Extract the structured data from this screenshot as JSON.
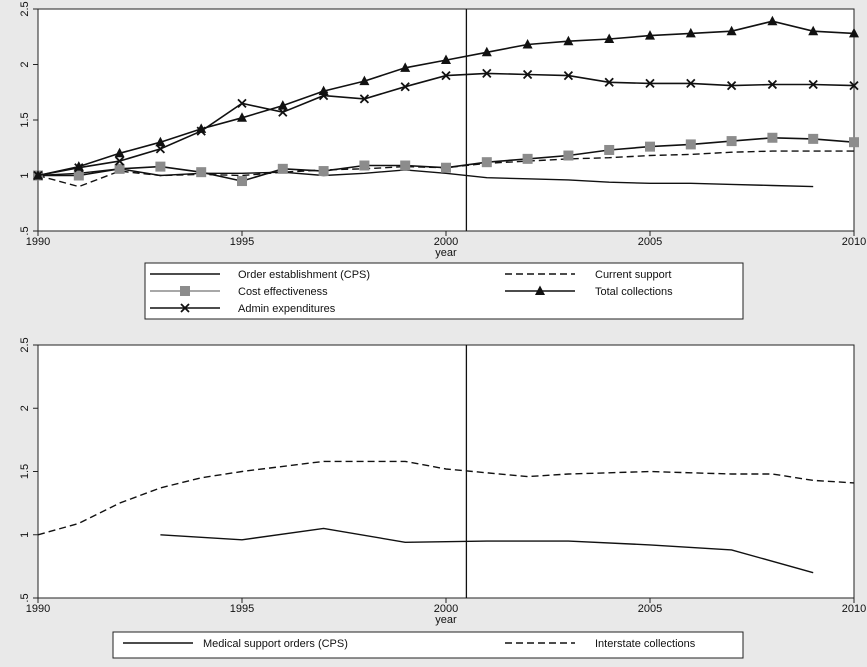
{
  "chart_data": [
    {
      "type": "line",
      "xlabel": "year",
      "ylabel": "",
      "xlim": [
        1990,
        2010
      ],
      "ylim": [
        0.5,
        2.5
      ],
      "xticks": [
        "1990",
        "1995",
        "2000",
        "2005",
        "2010"
      ],
      "yticks": [
        ".5",
        "1",
        "1.5",
        "2",
        "2.5"
      ],
      "reference_line_x": 2000.5,
      "legend_position": "bottom",
      "series": [
        {
          "name": "Order establishment (CPS)",
          "style": "solid",
          "marker": "none",
          "x": [
            1990,
            1991,
            1992,
            1993,
            1994,
            1995,
            1996,
            1997,
            1998,
            1999,
            2000,
            2001,
            2002,
            2003,
            2004,
            2005,
            2006,
            2007,
            2008,
            2009
          ],
          "values": [
            1.0,
            1.02,
            1.06,
            1.0,
            1.02,
            1.02,
            1.03,
            1.0,
            1.02,
            1.05,
            1.02,
            0.98,
            0.97,
            0.96,
            0.94,
            0.93,
            0.93,
            0.92,
            0.91,
            0.9
          ]
        },
        {
          "name": "Current support",
          "style": "dashed",
          "marker": "none",
          "x": [
            1990,
            1991,
            1992,
            1993,
            1994,
            1995,
            1996,
            1997,
            1998,
            1999,
            2000,
            2001,
            2002,
            2003,
            2004,
            2005,
            2006,
            2007,
            2008,
            2009,
            2010
          ],
          "values": [
            1.0,
            0.9,
            1.04,
            1.0,
            1.01,
            1.0,
            1.03,
            1.05,
            1.06,
            1.08,
            1.07,
            1.11,
            1.13,
            1.15,
            1.16,
            1.18,
            1.19,
            1.21,
            1.22,
            1.22,
            1.22
          ]
        },
        {
          "name": "Cost effectiveness",
          "style": "solid",
          "marker": "square",
          "color": "#8c8c8c",
          "x": [
            1990,
            1991,
            1992,
            1993,
            1994,
            1995,
            1996,
            1997,
            1998,
            1999,
            2000,
            2001,
            2002,
            2003,
            2004,
            2005,
            2006,
            2007,
            2008,
            2009,
            2010
          ],
          "values": [
            1.0,
            1.0,
            1.06,
            1.08,
            1.03,
            0.95,
            1.06,
            1.04,
            1.09,
            1.09,
            1.07,
            1.12,
            1.15,
            1.18,
            1.23,
            1.26,
            1.28,
            1.31,
            1.34,
            1.33,
            1.3
          ]
        },
        {
          "name": "Total collections",
          "style": "solid",
          "marker": "triangle",
          "x": [
            1990,
            1991,
            1992,
            1993,
            1994,
            1995,
            1996,
            1997,
            1998,
            1999,
            2000,
            2001,
            2002,
            2003,
            2004,
            2005,
            2006,
            2007,
            2008,
            2009,
            2010
          ],
          "values": [
            1.0,
            1.08,
            1.2,
            1.3,
            1.42,
            1.52,
            1.63,
            1.76,
            1.85,
            1.97,
            2.04,
            2.11,
            2.18,
            2.21,
            2.23,
            2.26,
            2.28,
            2.3,
            2.39,
            2.3,
            2.28
          ]
        },
        {
          "name": "Admin expenditures",
          "style": "solid",
          "marker": "x",
          "x": [
            1990,
            1991,
            1992,
            1993,
            1994,
            1995,
            1996,
            1997,
            1998,
            1999,
            2000,
            2001,
            2002,
            2003,
            2004,
            2005,
            2006,
            2007,
            2008,
            2009,
            2010
          ],
          "values": [
            1.0,
            1.07,
            1.13,
            1.24,
            1.4,
            1.65,
            1.57,
            1.72,
            1.69,
            1.8,
            1.9,
            1.92,
            1.91,
            1.9,
            1.84,
            1.83,
            1.83,
            1.81,
            1.82,
            1.82,
            1.81
          ]
        }
      ]
    },
    {
      "type": "line",
      "xlabel": "year",
      "ylabel": "",
      "xlim": [
        1990,
        2010
      ],
      "ylim": [
        0.5,
        2.5
      ],
      "xticks": [
        "1990",
        "1995",
        "2000",
        "2005",
        "2010"
      ],
      "yticks": [
        ".5",
        "1",
        "1.5",
        "2",
        "2.5"
      ],
      "reference_line_x": 2000.5,
      "legend_position": "bottom",
      "series": [
        {
          "name": "Medical support orders (CPS)",
          "style": "solid",
          "marker": "none",
          "x": [
            1993,
            1995,
            1997,
            1999,
            2001,
            2003,
            2005,
            2007,
            2009
          ],
          "values": [
            1.0,
            0.96,
            1.05,
            0.94,
            0.95,
            0.95,
            0.92,
            0.88,
            0.7
          ]
        },
        {
          "name": "Interstate collections",
          "style": "dashed",
          "marker": "none",
          "x": [
            1990,
            1991,
            1992,
            1993,
            1994,
            1995,
            1996,
            1997,
            1998,
            1999,
            2000,
            2001,
            2002,
            2003,
            2004,
            2005,
            2006,
            2007,
            2008,
            2009,
            2010
          ],
          "values": [
            1.0,
            1.09,
            1.25,
            1.37,
            1.45,
            1.5,
            1.54,
            1.58,
            1.58,
            1.58,
            1.52,
            1.49,
            1.46,
            1.48,
            1.49,
            1.5,
            1.49,
            1.48,
            1.48,
            1.43,
            1.41
          ]
        }
      ]
    }
  ]
}
